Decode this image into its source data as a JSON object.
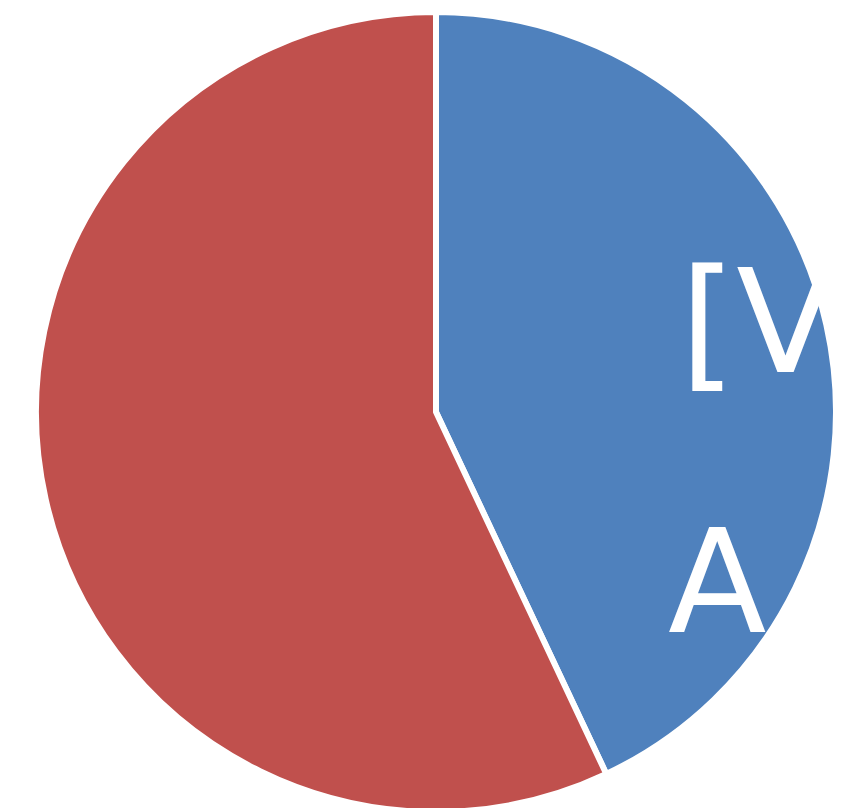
{
  "chart_data": {
    "type": "pie",
    "categories": [
      null,
      null
    ],
    "values": [
      43,
      57
    ],
    "colors": [
      "#4f81bd",
      "#c0504d"
    ],
    "annotations": [
      "[V",
      "A"
    ]
  }
}
